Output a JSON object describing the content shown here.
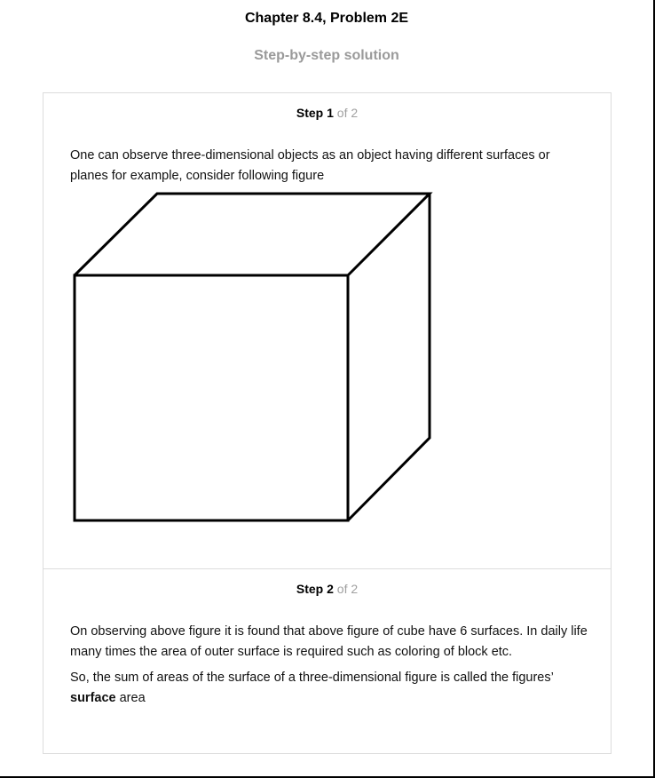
{
  "header": {
    "title": "Chapter 8.4, Problem 2E",
    "subtitle": "Step-by-step solution"
  },
  "steps": [
    {
      "label": "Step",
      "number": "1",
      "of_text": "of 2",
      "text": "One can observe three-dimensional objects as an object having different surfaces or planes for example, consider following figure"
    },
    {
      "label": "Step",
      "number": "2",
      "of_text": "of 2",
      "para1": "On observing above figure it is found that above figure of cube have 6 surfaces. In daily life many times the area of outer surface is required such as coloring of block etc.",
      "para2_prefix": "So, the sum of areas of the surface of a three-dimensional figure is called the figures’",
      "para2_bold": "surface",
      "para2_suffix": " area"
    }
  ],
  "colors": {
    "title": "#000000",
    "muted": "#9a9a9a",
    "border": "#dcdcdc"
  },
  "icons": [
    "cube-figure"
  ]
}
